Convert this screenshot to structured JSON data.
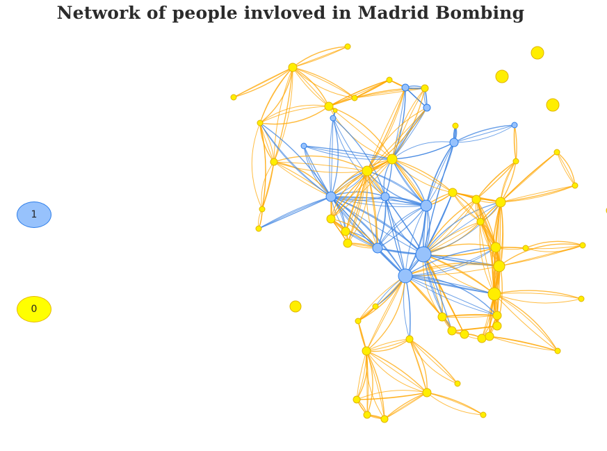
{
  "title": "Network of people invloved in Madrid Bombing",
  "legend": [
    {
      "group": "1",
      "label": "1",
      "fill": "#97c2fc",
      "stroke": "#2b7ce9"
    },
    {
      "group": "0",
      "label": "0",
      "fill": "#ffff00",
      "stroke": "#e6b800"
    }
  ],
  "colors": {
    "group1_node": "#97c2fc",
    "group1_border": "#2b7ce9",
    "group1_edge": "#3b82e0",
    "group0_node": "#ffee00",
    "group0_border": "#e0b400",
    "group0_edge": "#ffa500"
  }
}
